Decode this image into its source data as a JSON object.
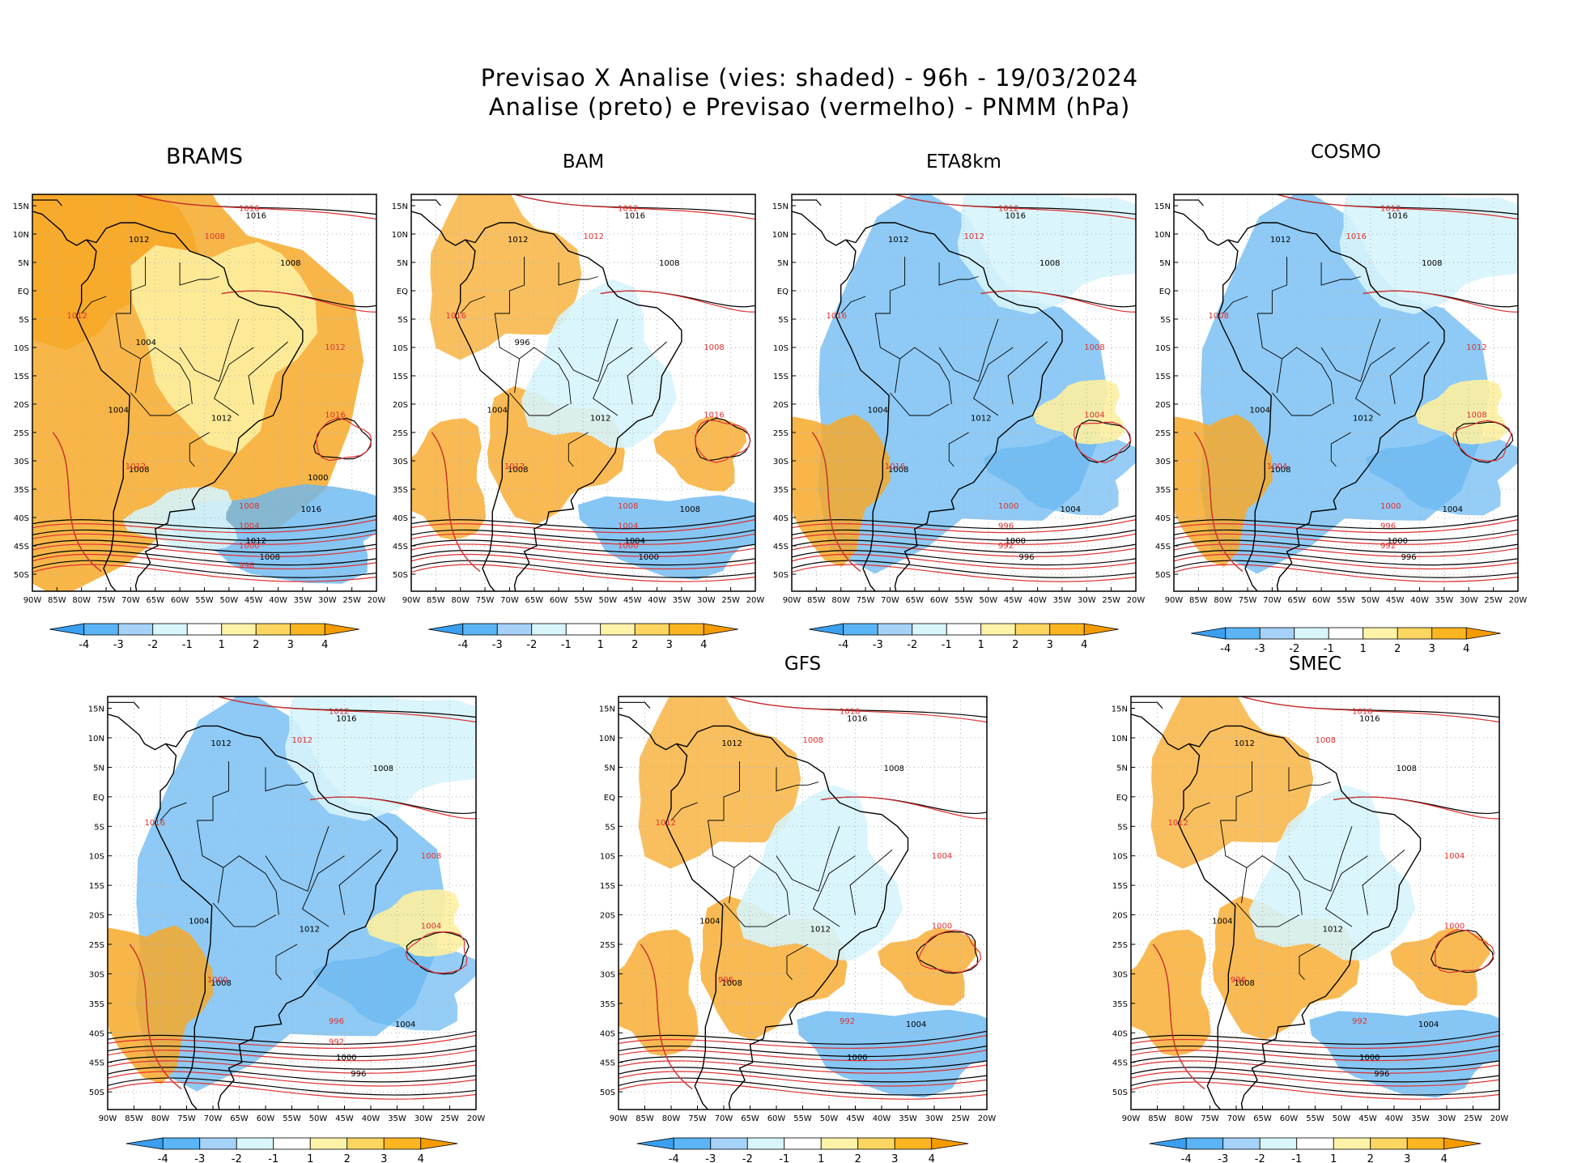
{
  "header": {
    "line1": "Previsao X Analise (vies: shaded) - 96h - 19/03/2024",
    "line2": "Analise (preto) e Previsao (vermelho) - PNMM (hPa)"
  },
  "axes": {
    "lat_ticks": [
      "15N",
      "10N",
      "5N",
      "EQ",
      "5S",
      "10S",
      "15S",
      "20S",
      "25S",
      "30S",
      "35S",
      "40S",
      "45S",
      "50S"
    ],
    "lon_ticks": [
      "90W",
      "85W",
      "80W",
      "75W",
      "70W",
      "65W",
      "60W",
      "55W",
      "50W",
      "45W",
      "40W",
      "35W",
      "30W",
      "25W",
      "20W"
    ]
  },
  "colorbar": {
    "labels": [
      "-4",
      "-3",
      "-2",
      "-1",
      "1",
      "2",
      "3",
      "4"
    ],
    "colors": [
      "#3a9ff0",
      "#5ab4f5",
      "#a6d2fa",
      "#d8f6fa",
      "#ffffff",
      "#fdf3a8",
      "#fcd660",
      "#fbb520",
      "#f59b00"
    ]
  },
  "colors": {
    "analysis_contour": "#000000",
    "forecast_contour": "#e03030",
    "warm_bias": "#f7a928",
    "cold_bias": "#68b8f2",
    "weak_warm": "#fdf0a0",
    "weak_cold": "#d6f4fb"
  },
  "panels": [
    {
      "name": "BRAMS",
      "title": "BRAMS",
      "bias": "warm",
      "labels_black": [
        "1016",
        "1012",
        "1008",
        "1004",
        "1008",
        "1012",
        "1016",
        "1012",
        "1008",
        "1004",
        "1000"
      ],
      "labels_red": [
        "1016",
        "1012",
        "1008",
        "1012",
        "1016",
        "1012",
        "1008",
        "1004",
        "1000",
        "996"
      ]
    },
    {
      "name": "BAM",
      "title": "BAM",
      "bias": "mixed",
      "labels_black": [
        "1016",
        "1012",
        "1008",
        "1004",
        "1008",
        "1012",
        "1008",
        "1004",
        "1000",
        "996"
      ],
      "labels_red": [
        "1012",
        "1016",
        "1012",
        "1008",
        "1016",
        "1012",
        "1008",
        "1004",
        "1000"
      ]
    },
    {
      "name": "ETA8km",
      "title": "ETA8km",
      "bias": "cold",
      "labels_black": [
        "1016",
        "1012",
        "1008",
        "1004",
        "1008",
        "1012",
        "1004",
        "1000",
        "996"
      ],
      "labels_red": [
        "1012",
        "1016",
        "1012",
        "1008",
        "1004",
        "1016",
        "1000",
        "996",
        "992"
      ]
    },
    {
      "name": "COSMO",
      "title": "COSMO",
      "bias": "cold",
      "labels_black": [
        "1016",
        "1012",
        "1008",
        "1004",
        "1008",
        "1012",
        "1004",
        "1000",
        "996"
      ],
      "labels_red": [
        "1012",
        "1008",
        "1016",
        "1012",
        "1008",
        "1004",
        "1000",
        "996",
        "992"
      ]
    },
    {
      "name": "unnamed",
      "title": "",
      "bias": "cold",
      "labels_black": [
        "1016",
        "1012",
        "1008",
        "1004",
        "1008",
        "1012",
        "1004",
        "1000",
        "996"
      ],
      "labels_red": [
        "1012",
        "1016",
        "1012",
        "1008",
        "1004",
        "1000",
        "996",
        "992"
      ]
    },
    {
      "name": "GFS",
      "title": "GFS",
      "bias": "mixed",
      "labels_black": [
        "1016",
        "1012",
        "1008",
        "1004",
        "1008",
        "1012",
        "1004",
        "1000"
      ],
      "labels_red": [
        "1016",
        "1012",
        "1008",
        "1004",
        "1000",
        "996",
        "992"
      ]
    },
    {
      "name": "SMEC",
      "title": "SMEC",
      "bias": "mixed",
      "labels_black": [
        "1016",
        "1012",
        "1008",
        "1004",
        "1008",
        "1012",
        "1004",
        "1000",
        "996"
      ],
      "labels_red": [
        "1016",
        "1012",
        "1008",
        "1004",
        "1000",
        "996",
        "992"
      ]
    }
  ]
}
